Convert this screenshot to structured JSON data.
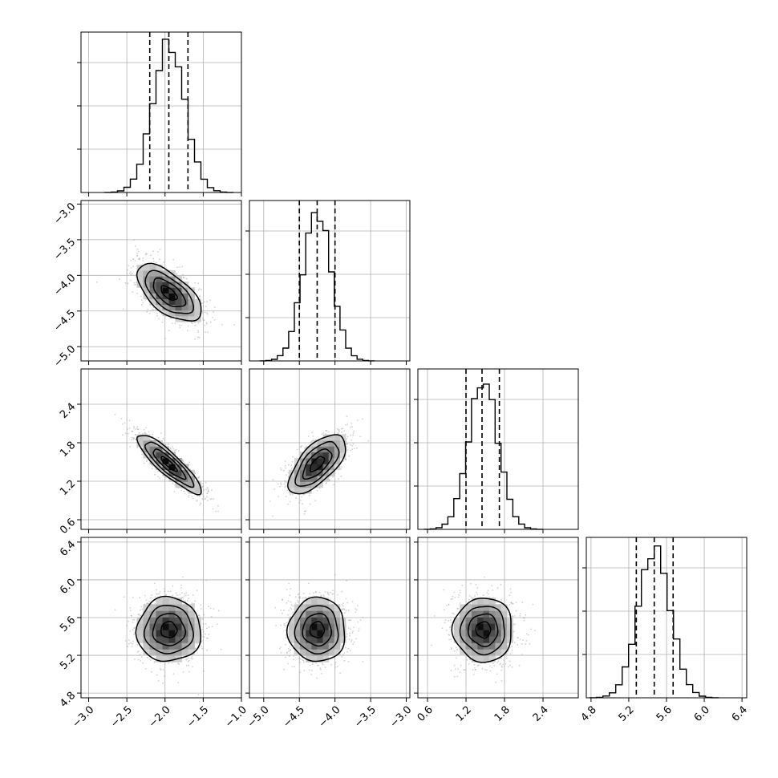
{
  "colors": {
    "background": "#ffffff",
    "frame": "#000000",
    "grid": "#b0b0b0",
    "hist_line": "#000000",
    "quantile_line": "#000000",
    "scatter": "#9a9a9a",
    "density_low": "#f0f0f0",
    "density_high": "#000000",
    "contour": "#000000"
  },
  "chart_data": {
    "type": "corner",
    "title": "",
    "parameters": [
      {
        "index": 0,
        "mean": -1.95,
        "sd": 0.21,
        "range": [
          -3.1,
          -1.0
        ],
        "ticks": [
          -3.0,
          -2.5,
          -2.0,
          -1.5,
          -1.0
        ],
        "tick_labels": [
          "−3.0",
          "−2.5",
          "−2.0",
          "−1.5",
          "−1.0"
        ],
        "quantiles": [
          -2.2,
          -1.95,
          -1.7
        ]
      },
      {
        "index": 1,
        "mean": -4.25,
        "sd": 0.2,
        "range": [
          -5.2,
          -2.95
        ],
        "ticks": [
          -5.0,
          -4.5,
          -4.0,
          -3.5,
          -3.0
        ],
        "tick_labels": [
          "−5.0",
          "−4.5",
          "−4.0",
          "−3.5",
          "−3.0"
        ],
        "quantiles": [
          -4.5,
          -4.25,
          -4.0
        ]
      },
      {
        "index": 2,
        "mean": 1.47,
        "sd": 0.23,
        "range": [
          0.45,
          2.95
        ],
        "ticks": [
          0.6,
          1.2,
          1.8,
          2.4
        ],
        "tick_labels": [
          "0.6",
          "1.2",
          "1.8",
          "2.4"
        ],
        "quantiles": [
          1.2,
          1.45,
          1.72
        ]
      },
      {
        "index": 3,
        "mean": 5.47,
        "sd": 0.17,
        "range": [
          4.75,
          6.45
        ],
        "ticks": [
          4.8,
          5.2,
          5.6,
          6.0,
          6.4
        ],
        "tick_labels": [
          "4.8",
          "5.2",
          "5.6",
          "6.0",
          "6.4"
        ],
        "quantiles": [
          5.28,
          5.47,
          5.67
        ]
      }
    ],
    "correlations": [
      [
        1.0,
        -0.62,
        -0.88,
        0.0
      ],
      [
        -0.62,
        1.0,
        0.65,
        0.0
      ],
      [
        -0.88,
        0.65,
        1.0,
        0.0
      ],
      [
        0.0,
        0.0,
        0.0,
        1.0
      ]
    ],
    "contour_levels_sigma": [
      0.5,
      1.0,
      1.5,
      2.0
    ],
    "histogram_bins": 20,
    "grid": true,
    "xlabel": "",
    "ylabel": ""
  }
}
